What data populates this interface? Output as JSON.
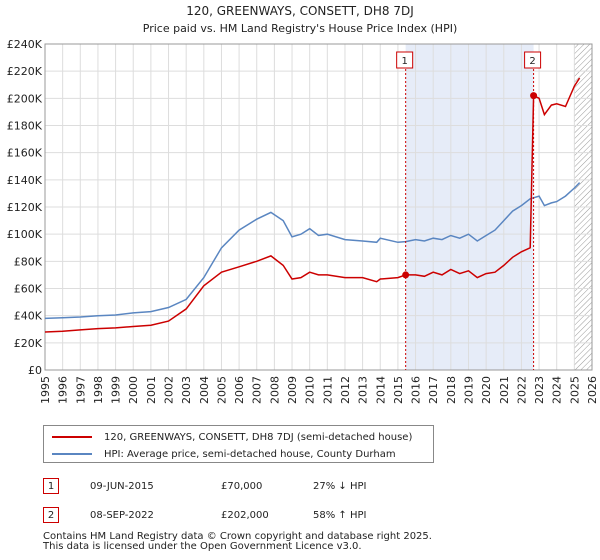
{
  "chart_data": {
    "type": "line",
    "title": "120, GREENWAYS, CONSETT, DH8 7DJ",
    "subtitle": "Price paid vs. HM Land Registry's House Price Index (HPI)",
    "xlim": [
      1995,
      2026
    ],
    "ylim": [
      0,
      240000
    ],
    "x_ticks": [
      1995,
      1996,
      1997,
      1998,
      1999,
      2000,
      2001,
      2002,
      2003,
      2004,
      2005,
      2006,
      2007,
      2008,
      2009,
      2010,
      2011,
      2012,
      2013,
      2014,
      2015,
      2016,
      2017,
      2018,
      2019,
      2020,
      2021,
      2022,
      2023,
      2024,
      2025,
      2026
    ],
    "y_ticks": [
      {
        "value": 0,
        "label": "£0"
      },
      {
        "value": 20000,
        "label": "£20K"
      },
      {
        "value": 40000,
        "label": "£40K"
      },
      {
        "value": 60000,
        "label": "£60K"
      },
      {
        "value": 80000,
        "label": "£80K"
      },
      {
        "value": 100000,
        "label": "£100K"
      },
      {
        "value": 120000,
        "label": "£120K"
      },
      {
        "value": 140000,
        "label": "£140K"
      },
      {
        "value": 160000,
        "label": "£160K"
      },
      {
        "value": 180000,
        "label": "£180K"
      },
      {
        "value": 200000,
        "label": "£200K"
      },
      {
        "value": 220000,
        "label": "£220K"
      },
      {
        "value": 240000,
        "label": "£240K"
      }
    ],
    "shaded_region": [
      2015.44,
      2022.69
    ],
    "future_hatch_from": 2025.0,
    "series": [
      {
        "name": "120, GREENWAYS, CONSETT, DH8 7DJ (semi-detached house)",
        "color": "#cc0000",
        "points": [
          [
            1995,
            28000
          ],
          [
            1996,
            28500
          ],
          [
            1997,
            29500
          ],
          [
            1998,
            30500
          ],
          [
            1999,
            31000
          ],
          [
            2000,
            32000
          ],
          [
            2001,
            33000
          ],
          [
            2002,
            36000
          ],
          [
            2003,
            45000
          ],
          [
            2004,
            62000
          ],
          [
            2005,
            72000
          ],
          [
            2006,
            76000
          ],
          [
            2007,
            80000
          ],
          [
            2007.8,
            84000
          ],
          [
            2008.5,
            77000
          ],
          [
            2009,
            67000
          ],
          [
            2009.5,
            68000
          ],
          [
            2010,
            72000
          ],
          [
            2010.5,
            70000
          ],
          [
            2011,
            70000
          ],
          [
            2012,
            68000
          ],
          [
            2013,
            68000
          ],
          [
            2013.8,
            65000
          ],
          [
            2014,
            67000
          ],
          [
            2015,
            68000
          ],
          [
            2015.44,
            70000
          ],
          [
            2016,
            70000
          ],
          [
            2016.5,
            69000
          ],
          [
            2017,
            72000
          ],
          [
            2017.5,
            70000
          ],
          [
            2018,
            74000
          ],
          [
            2018.5,
            71000
          ],
          [
            2019,
            73000
          ],
          [
            2019.5,
            68000
          ],
          [
            2020,
            71000
          ],
          [
            2020.5,
            72000
          ],
          [
            2021,
            77000
          ],
          [
            2021.5,
            83000
          ],
          [
            2022,
            87000
          ],
          [
            2022.5,
            90000
          ],
          [
            2022.69,
            202000
          ],
          [
            2023,
            200000
          ],
          [
            2023.3,
            188000
          ],
          [
            2023.7,
            195000
          ],
          [
            2024,
            196000
          ],
          [
            2024.5,
            194000
          ],
          [
            2025,
            209000
          ],
          [
            2025.3,
            215000
          ]
        ]
      },
      {
        "name": "HPI: Average price, semi-detached house, County Durham",
        "color": "#5a86c1",
        "points": [
          [
            1995,
            38000
          ],
          [
            1996,
            38500
          ],
          [
            1997,
            39000
          ],
          [
            1998,
            40000
          ],
          [
            1999,
            40500
          ],
          [
            2000,
            42000
          ],
          [
            2001,
            43000
          ],
          [
            2002,
            46000
          ],
          [
            2003,
            52000
          ],
          [
            2004,
            68000
          ],
          [
            2005,
            90000
          ],
          [
            2006,
            103000
          ],
          [
            2007,
            111000
          ],
          [
            2007.8,
            116000
          ],
          [
            2008.5,
            110000
          ],
          [
            2009,
            98000
          ],
          [
            2009.5,
            100000
          ],
          [
            2010,
            104000
          ],
          [
            2010.5,
            99000
          ],
          [
            2011,
            100000
          ],
          [
            2012,
            96000
          ],
          [
            2013,
            95000
          ],
          [
            2013.8,
            94000
          ],
          [
            2014,
            97000
          ],
          [
            2015,
            94000
          ],
          [
            2015.44,
            94500
          ],
          [
            2016,
            96000
          ],
          [
            2016.5,
            95000
          ],
          [
            2017,
            97000
          ],
          [
            2017.5,
            96000
          ],
          [
            2018,
            99000
          ],
          [
            2018.5,
            97000
          ],
          [
            2019,
            100000
          ],
          [
            2019.5,
            95000
          ],
          [
            2020,
            99000
          ],
          [
            2020.5,
            103000
          ],
          [
            2021,
            110000
          ],
          [
            2021.5,
            117000
          ],
          [
            2022,
            121000
          ],
          [
            2022.5,
            126000
          ],
          [
            2023,
            128000
          ],
          [
            2023.3,
            121000
          ],
          [
            2023.7,
            123000
          ],
          [
            2024,
            124000
          ],
          [
            2024.5,
            128000
          ],
          [
            2025,
            134000
          ],
          [
            2025.3,
            138000
          ]
        ]
      }
    ],
    "annotations": [
      {
        "label": "1",
        "x": 2015.44,
        "y": 70000
      },
      {
        "label": "2",
        "x": 2022.69,
        "y": 202000
      }
    ]
  },
  "legend": {
    "items": [
      {
        "label": "120, GREENWAYS, CONSETT, DH8 7DJ (semi-detached house)",
        "color": "#cc0000"
      },
      {
        "label": "HPI: Average price, semi-detached house, County Durham",
        "color": "#5a86c1"
      }
    ]
  },
  "transactions": [
    {
      "num": "1",
      "date": "09-JUN-2015",
      "price": "£70,000",
      "hpi": "27% ↓ HPI"
    },
    {
      "num": "2",
      "date": "08-SEP-2022",
      "price": "£202,000",
      "hpi": "58% ↑ HPI"
    }
  ],
  "footer": {
    "line1": "Contains HM Land Registry data © Crown copyright and database right 2025.",
    "line2": "This data is licensed under the Open Government Licence v3.0."
  }
}
